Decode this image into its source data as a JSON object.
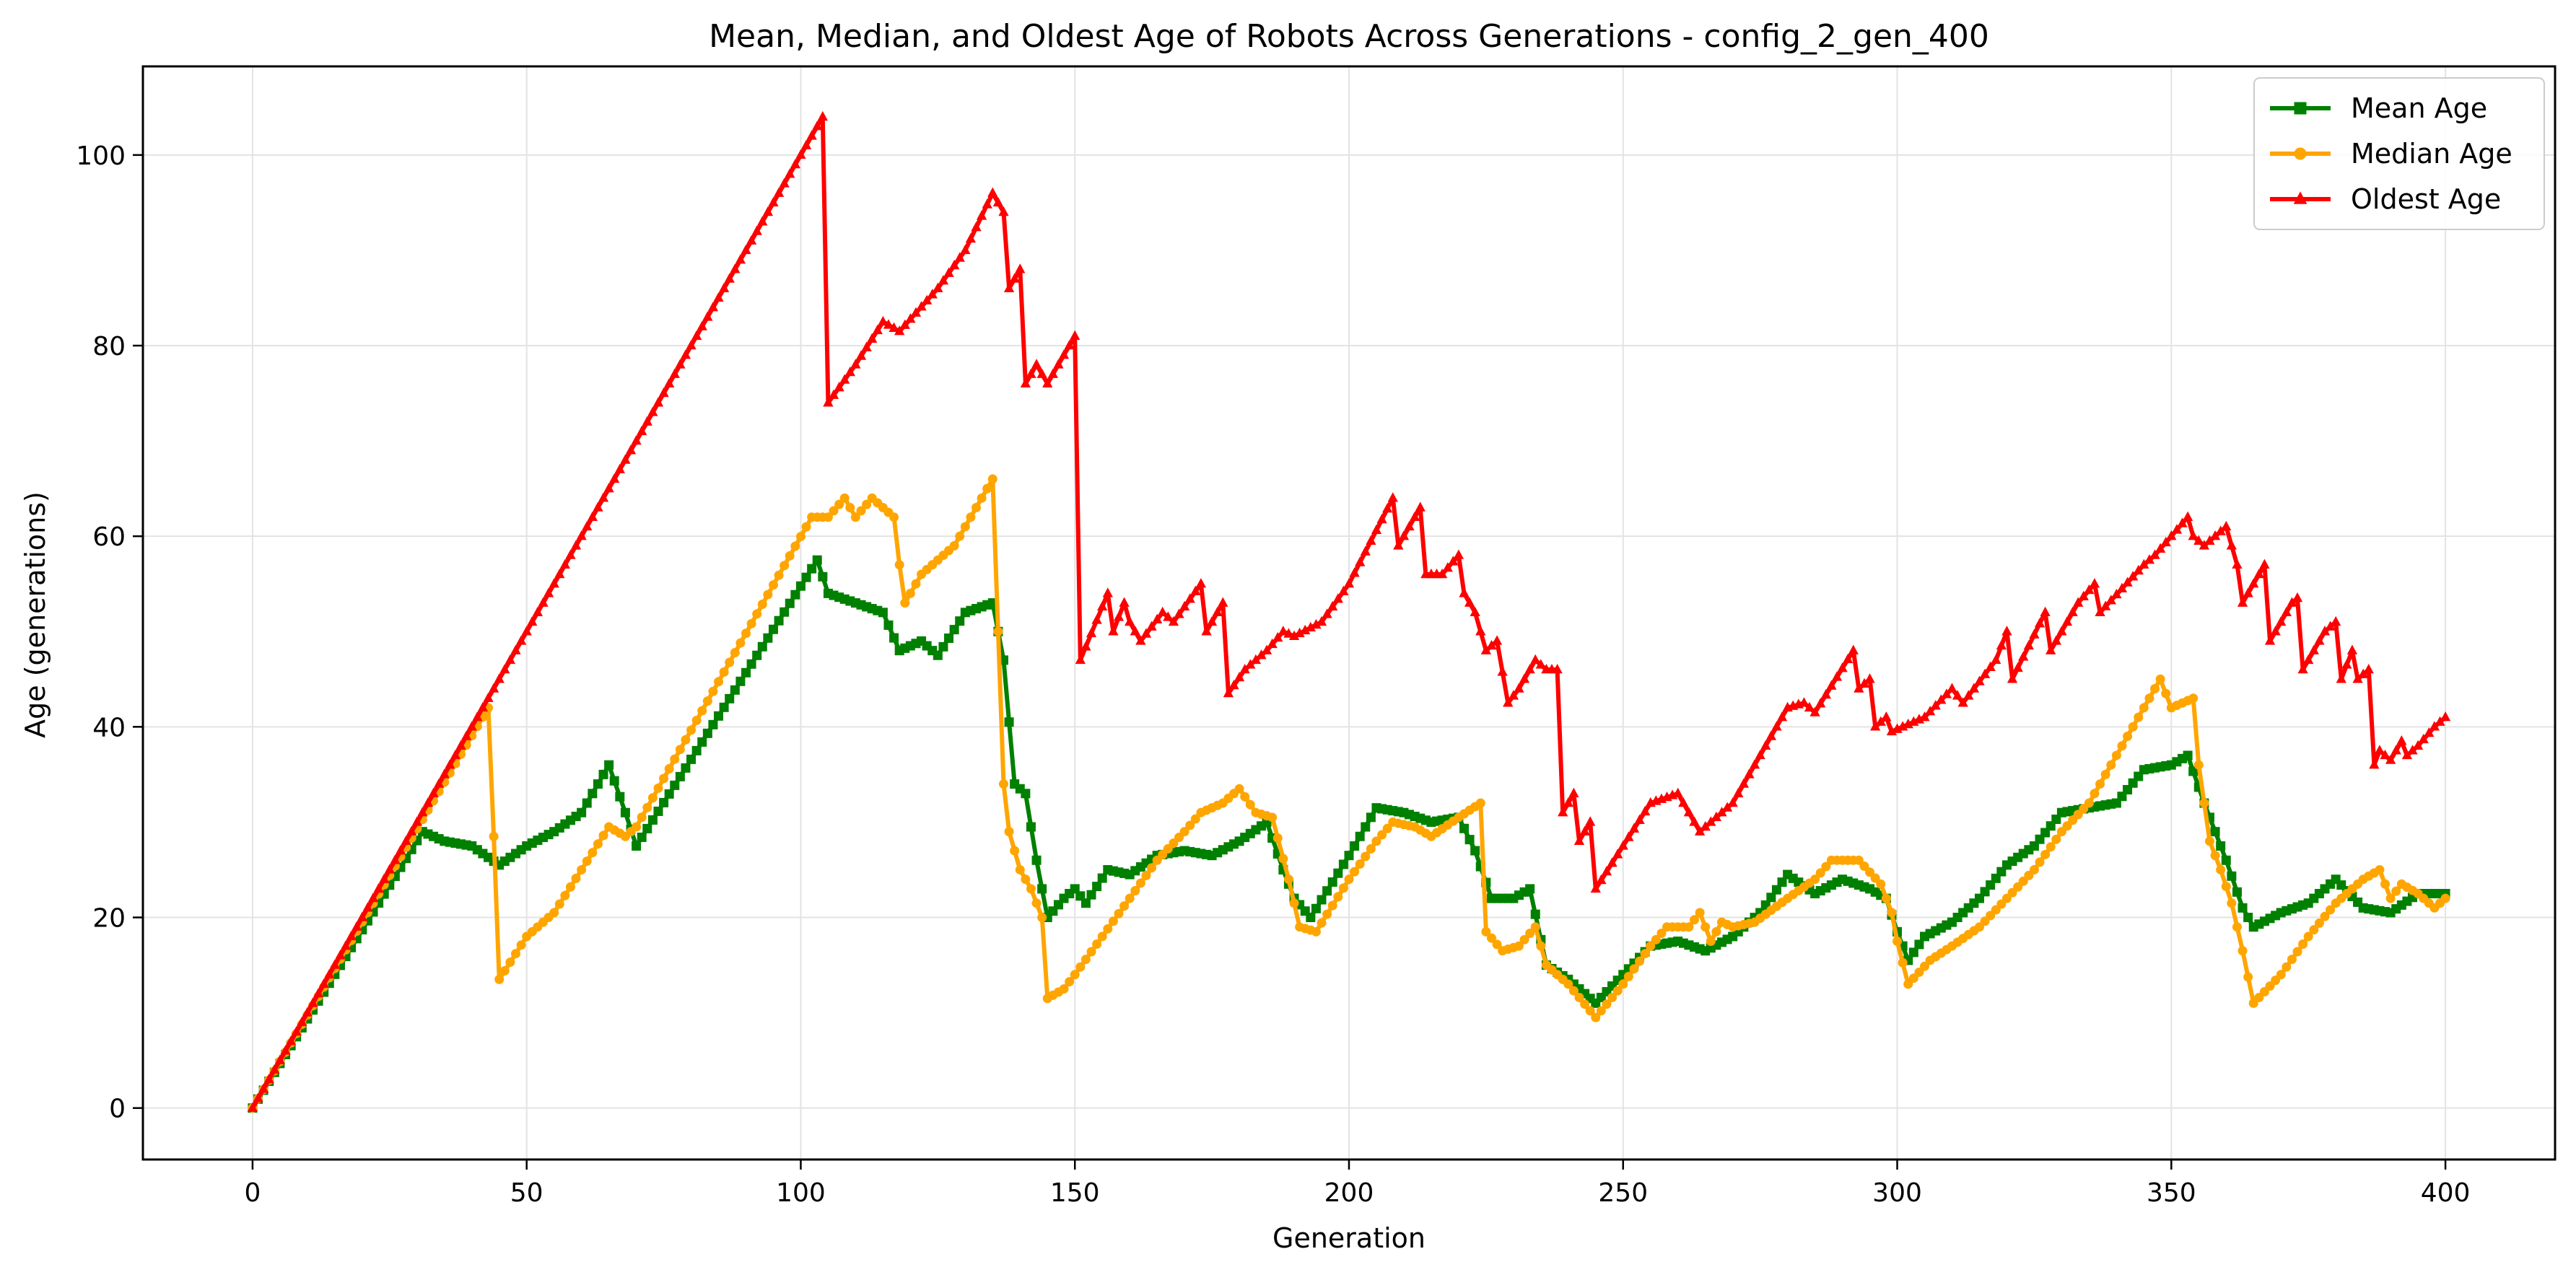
{
  "chart_data": {
    "type": "line",
    "title": "Mean, Median, and Oldest Age of Robots Across Generations - config_2_gen_400",
    "xlabel": "Generation",
    "ylabel": "Age (generations)",
    "xlim": [
      -20,
      420
    ],
    "ylim": [
      -5.4,
      109.3
    ],
    "x_ticks": [
      0,
      50,
      100,
      150,
      200,
      250,
      300,
      350,
      400
    ],
    "y_ticks": [
      0,
      20,
      40,
      60,
      80,
      100
    ],
    "grid": true,
    "legend_position": "top-right",
    "series": [
      {
        "name": "Mean Age",
        "color": "#008000",
        "marker": "square",
        "points": [
          [
            0,
            0
          ],
          [
            31,
            29
          ],
          [
            35,
            28
          ],
          [
            40,
            27.5
          ],
          [
            45,
            25.5
          ],
          [
            50,
            27.5
          ],
          [
            55,
            29
          ],
          [
            60,
            31
          ],
          [
            65,
            36
          ],
          [
            68,
            31
          ],
          [
            70,
            27.5
          ],
          [
            103,
            57.5
          ],
          [
            105,
            54
          ],
          [
            110,
            53
          ],
          [
            115,
            52
          ],
          [
            118,
            48
          ],
          [
            122,
            49
          ],
          [
            125,
            47.5
          ],
          [
            130,
            52
          ],
          [
            135,
            53
          ],
          [
            137,
            47
          ],
          [
            139,
            34
          ],
          [
            141,
            33
          ],
          [
            143,
            26
          ],
          [
            145,
            20
          ],
          [
            148,
            22
          ],
          [
            150,
            23
          ],
          [
            152,
            21.5
          ],
          [
            156,
            25
          ],
          [
            160,
            24.5
          ],
          [
            165,
            26.5
          ],
          [
            170,
            27
          ],
          [
            175,
            26.5
          ],
          [
            180,
            28
          ],
          [
            185,
            30
          ],
          [
            188,
            25
          ],
          [
            190,
            22
          ],
          [
            193,
            20
          ],
          [
            200,
            26.5
          ],
          [
            205,
            31.5
          ],
          [
            210,
            31
          ],
          [
            215,
            30
          ],
          [
            220,
            30.5
          ],
          [
            223,
            27
          ],
          [
            226,
            22
          ],
          [
            230,
            22
          ],
          [
            233,
            23
          ],
          [
            236,
            15
          ],
          [
            240,
            13.5
          ],
          [
            245,
            11
          ],
          [
            250,
            14
          ],
          [
            255,
            17
          ],
          [
            260,
            17.5
          ],
          [
            265,
            16.5
          ],
          [
            270,
            18
          ],
          [
            275,
            20.5
          ],
          [
            280,
            24.5
          ],
          [
            285,
            22.5
          ],
          [
            290,
            24
          ],
          [
            295,
            23
          ],
          [
            298,
            22
          ],
          [
            300,
            18.5
          ],
          [
            302,
            15.5
          ],
          [
            305,
            18
          ],
          [
            310,
            19.5
          ],
          [
            315,
            22
          ],
          [
            320,
            25.5
          ],
          [
            325,
            27.5
          ],
          [
            330,
            31
          ],
          [
            335,
            31.5
          ],
          [
            340,
            32
          ],
          [
            345,
            35.5
          ],
          [
            350,
            36
          ],
          [
            353,
            37
          ],
          [
            356,
            32
          ],
          [
            358,
            29
          ],
          [
            360,
            26
          ],
          [
            363,
            21
          ],
          [
            365,
            19
          ],
          [
            370,
            20.5
          ],
          [
            375,
            21.5
          ],
          [
            380,
            24
          ],
          [
            385,
            21
          ],
          [
            390,
            20.5
          ],
          [
            395,
            22.5
          ],
          [
            400,
            22.5
          ]
        ]
      },
      {
        "name": "Median Age",
        "color": "#FFA500",
        "marker": "circle",
        "points": [
          [
            0,
            0
          ],
          [
            43,
            42
          ],
          [
            44,
            28.5
          ],
          [
            45,
            13.5
          ],
          [
            50,
            18
          ],
          [
            55,
            20.5
          ],
          [
            60,
            25
          ],
          [
            65,
            29.5
          ],
          [
            68,
            28.5
          ],
          [
            70,
            29.5
          ],
          [
            102,
            62
          ],
          [
            105,
            62
          ],
          [
            108,
            64
          ],
          [
            110,
            62
          ],
          [
            113,
            64
          ],
          [
            117,
            62
          ],
          [
            118,
            57
          ],
          [
            119,
            53
          ],
          [
            122,
            56
          ],
          [
            128,
            59
          ],
          [
            132,
            63
          ],
          [
            135,
            66
          ],
          [
            137,
            34
          ],
          [
            138,
            29
          ],
          [
            140,
            25
          ],
          [
            142,
            23
          ],
          [
            144,
            20
          ],
          [
            145,
            11.5
          ],
          [
            148,
            12.5
          ],
          [
            150,
            14
          ],
          [
            155,
            18
          ],
          [
            160,
            22
          ],
          [
            165,
            26
          ],
          [
            170,
            29
          ],
          [
            173,
            31
          ],
          [
            177,
            32
          ],
          [
            180,
            33.5
          ],
          [
            183,
            31
          ],
          [
            186,
            30.5
          ],
          [
            189,
            24
          ],
          [
            191,
            19
          ],
          [
            194,
            18.5
          ],
          [
            200,
            24
          ],
          [
            205,
            28
          ],
          [
            208,
            30
          ],
          [
            212,
            29.5
          ],
          [
            215,
            28.5
          ],
          [
            220,
            30.5
          ],
          [
            224,
            32
          ],
          [
            225,
            18.5
          ],
          [
            228,
            16.5
          ],
          [
            231,
            17
          ],
          [
            234,
            19
          ],
          [
            236,
            15
          ],
          [
            240,
            13
          ],
          [
            245,
            9.5
          ],
          [
            250,
            13
          ],
          [
            255,
            17
          ],
          [
            258,
            19
          ],
          [
            262,
            19
          ],
          [
            264,
            20.5
          ],
          [
            266,
            17.5
          ],
          [
            268,
            19.5
          ],
          [
            270,
            19
          ],
          [
            274,
            19.5
          ],
          [
            280,
            22
          ],
          [
            285,
            24
          ],
          [
            288,
            26
          ],
          [
            293,
            26
          ],
          [
            297,
            23.5
          ],
          [
            299,
            20.5
          ],
          [
            300,
            17.5
          ],
          [
            302,
            13
          ],
          [
            306,
            15.5
          ],
          [
            310,
            17
          ],
          [
            315,
            19
          ],
          [
            320,
            22
          ],
          [
            325,
            25
          ],
          [
            330,
            29
          ],
          [
            335,
            32
          ],
          [
            340,
            37
          ],
          [
            345,
            42
          ],
          [
            348,
            45
          ],
          [
            350,
            42
          ],
          [
            354,
            43
          ],
          [
            355,
            36
          ],
          [
            357,
            28
          ],
          [
            359,
            25
          ],
          [
            361,
            21.5
          ],
          [
            363,
            16.5
          ],
          [
            365,
            11
          ],
          [
            370,
            14
          ],
          [
            375,
            18
          ],
          [
            380,
            21.5
          ],
          [
            385,
            24
          ],
          [
            388,
            25
          ],
          [
            390,
            22
          ],
          [
            392,
            23.5
          ],
          [
            395,
            22.5
          ],
          [
            398,
            21
          ],
          [
            400,
            22
          ]
        ]
      },
      {
        "name": "Oldest Age",
        "color": "#FF0000",
        "marker": "triangle",
        "points": [
          [
            0,
            0
          ],
          [
            104,
            104
          ],
          [
            105,
            74
          ],
          [
            110,
            78
          ],
          [
            115,
            82.5
          ],
          [
            118,
            81.5
          ],
          [
            125,
            86
          ],
          [
            130,
            90
          ],
          [
            135,
            96
          ],
          [
            137,
            94
          ],
          [
            138,
            86
          ],
          [
            140,
            88
          ],
          [
            141,
            76
          ],
          [
            143,
            78
          ],
          [
            145,
            76
          ],
          [
            150,
            81
          ],
          [
            151,
            47
          ],
          [
            156,
            54
          ],
          [
            157,
            50
          ],
          [
            159,
            53
          ],
          [
            160,
            51
          ],
          [
            162,
            49
          ],
          [
            166,
            52
          ],
          [
            168,
            51
          ],
          [
            173,
            55
          ],
          [
            174,
            50
          ],
          [
            177,
            53
          ],
          [
            178,
            43.5
          ],
          [
            181,
            46
          ],
          [
            185,
            48
          ],
          [
            188,
            50
          ],
          [
            190,
            49.5
          ],
          [
            195,
            51
          ],
          [
            200,
            55
          ],
          [
            208,
            64
          ],
          [
            209,
            59
          ],
          [
            213,
            63
          ],
          [
            214,
            56
          ],
          [
            217,
            56
          ],
          [
            220,
            58
          ],
          [
            221,
            54
          ],
          [
            223,
            52
          ],
          [
            225,
            48
          ],
          [
            227,
            49
          ],
          [
            229,
            42.5
          ],
          [
            231,
            44
          ],
          [
            234,
            47
          ],
          [
            236,
            46
          ],
          [
            238,
            46
          ],
          [
            239,
            31
          ],
          [
            241,
            33
          ],
          [
            242,
            28
          ],
          [
            244,
            30
          ],
          [
            245,
            23
          ],
          [
            250,
            27.5
          ],
          [
            255,
            32
          ],
          [
            260,
            33
          ],
          [
            262,
            31
          ],
          [
            264,
            29
          ],
          [
            266,
            30
          ],
          [
            270,
            32
          ],
          [
            275,
            37
          ],
          [
            280,
            42
          ],
          [
            283,
            42.5
          ],
          [
            285,
            41.5
          ],
          [
            292,
            48
          ],
          [
            293,
            44
          ],
          [
            295,
            45
          ],
          [
            296,
            40
          ],
          [
            298,
            41
          ],
          [
            299,
            39.5
          ],
          [
            301,
            40
          ],
          [
            305,
            41
          ],
          [
            310,
            44
          ],
          [
            312,
            42.5
          ],
          [
            318,
            47
          ],
          [
            320,
            50
          ],
          [
            321,
            45
          ],
          [
            327,
            52
          ],
          [
            328,
            48
          ],
          [
            333,
            53
          ],
          [
            336,
            55
          ],
          [
            337,
            52
          ],
          [
            345,
            57
          ],
          [
            347,
            58
          ],
          [
            353,
            62
          ],
          [
            354,
            60
          ],
          [
            356,
            59
          ],
          [
            360,
            61
          ],
          [
            362,
            57
          ],
          [
            363,
            53
          ],
          [
            365,
            55
          ],
          [
            367,
            57
          ],
          [
            368,
            49
          ],
          [
            372,
            53
          ],
          [
            373,
            53.5
          ],
          [
            374,
            46
          ],
          [
            376,
            48
          ],
          [
            378,
            50
          ],
          [
            380,
            51
          ],
          [
            381,
            45
          ],
          [
            383,
            48
          ],
          [
            384,
            45
          ],
          [
            386,
            46
          ],
          [
            387,
            36
          ],
          [
            388,
            37.5
          ],
          [
            390,
            36.5
          ],
          [
            392,
            38.5
          ],
          [
            393,
            37
          ],
          [
            395,
            38
          ],
          [
            398,
            40
          ],
          [
            400,
            41
          ]
        ]
      }
    ]
  }
}
